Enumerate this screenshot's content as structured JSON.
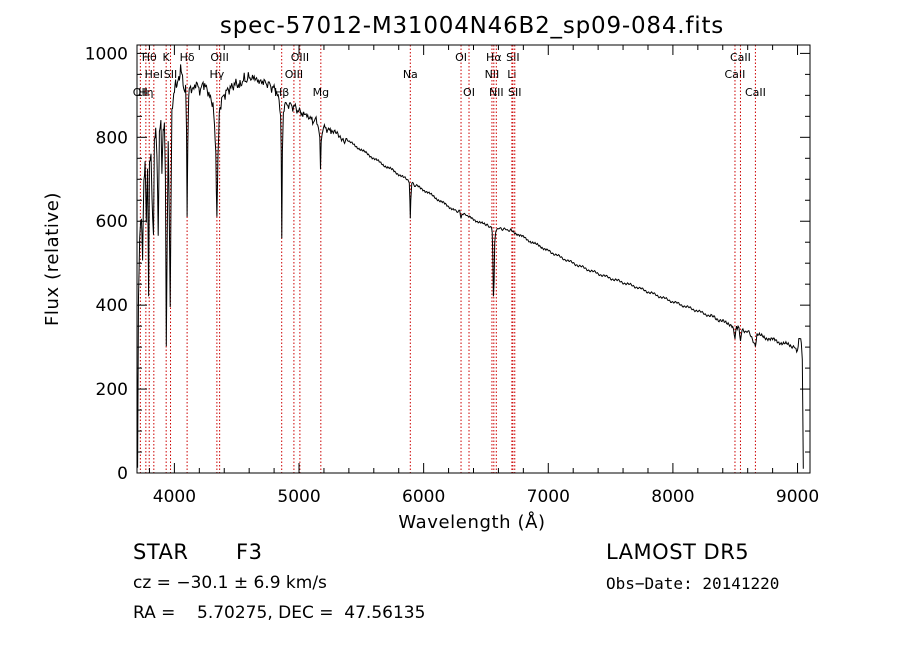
{
  "chart_data": {
    "type": "line",
    "title": "spec-57012-M31004N46B2_sp09-084.fits",
    "xlabel": "Wavelength (Å)",
    "ylabel": "Flux (relative)",
    "xlim": [
      3700,
      9100
    ],
    "ylim": [
      0,
      1020
    ],
    "xticks": [
      4000,
      5000,
      6000,
      7000,
      8000,
      9000
    ],
    "yticks": [
      0,
      200,
      400,
      600,
      800,
      1000
    ],
    "grid": false,
    "series": [
      {
        "points": [
          [
            3700,
            240
          ],
          [
            3705,
            10
          ],
          [
            3712,
            430
          ],
          [
            3722,
            560
          ],
          [
            3735,
            610
          ],
          [
            3745,
            520
          ],
          [
            3755,
            700
          ],
          [
            3765,
            740
          ],
          [
            3775,
            600
          ],
          [
            3785,
            720
          ],
          [
            3793,
            430
          ],
          [
            3800,
            740
          ],
          [
            3812,
            770
          ],
          [
            3820,
            660
          ],
          [
            3832,
            560
          ],
          [
            3840,
            800
          ],
          [
            3850,
            820
          ],
          [
            3860,
            760
          ],
          [
            3870,
            560
          ],
          [
            3880,
            800
          ],
          [
            3892,
            840
          ],
          [
            3900,
            720
          ],
          [
            3910,
            820
          ],
          [
            3920,
            840
          ],
          [
            3928,
            700
          ],
          [
            3935,
            300
          ],
          [
            3942,
            560
          ],
          [
            3950,
            780
          ],
          [
            3958,
            640
          ],
          [
            3966,
            400
          ],
          [
            3972,
            620
          ],
          [
            3980,
            860
          ],
          [
            3990,
            890
          ],
          [
            4000,
            920
          ],
          [
            4010,
            940
          ],
          [
            4020,
            920
          ],
          [
            4030,
            940
          ],
          [
            4040,
            930
          ],
          [
            4050,
            960
          ],
          [
            4060,
            950
          ],
          [
            4070,
            930
          ],
          [
            4080,
            910
          ],
          [
            4090,
            930
          ],
          [
            4097,
            820
          ],
          [
            4102,
            600
          ],
          [
            4108,
            780
          ],
          [
            4115,
            900
          ],
          [
            4130,
            920
          ],
          [
            4150,
            910
          ],
          [
            4170,
            930
          ],
          [
            4190,
            920
          ],
          [
            4210,
            910
          ],
          [
            4230,
            930
          ],
          [
            4250,
            920
          ],
          [
            4270,
            910
          ],
          [
            4290,
            890
          ],
          [
            4310,
            880
          ],
          [
            4322,
            840
          ],
          [
            4332,
            760
          ],
          [
            4341,
            610
          ],
          [
            4350,
            760
          ],
          [
            4360,
            860
          ],
          [
            4380,
            890
          ],
          [
            4400,
            900
          ],
          [
            4420,
            910
          ],
          [
            4440,
            915
          ],
          [
            4460,
            920
          ],
          [
            4480,
            925
          ],
          [
            4500,
            930
          ],
          [
            4520,
            920
          ],
          [
            4540,
            930
          ],
          [
            4560,
            940
          ],
          [
            4580,
            935
          ],
          [
            4600,
            945
          ],
          [
            4620,
            938
          ],
          [
            4640,
            945
          ],
          [
            4660,
            935
          ],
          [
            4680,
            935
          ],
          [
            4700,
            930
          ],
          [
            4720,
            935
          ],
          [
            4740,
            925
          ],
          [
            4760,
            930
          ],
          [
            4780,
            915
          ],
          [
            4800,
            920
          ],
          [
            4820,
            905
          ],
          [
            4840,
            890
          ],
          [
            4852,
            850
          ],
          [
            4857,
            760
          ],
          [
            4862,
            560
          ],
          [
            4867,
            760
          ],
          [
            4875,
            860
          ],
          [
            4890,
            880
          ],
          [
            4910,
            875
          ],
          [
            4930,
            880
          ],
          [
            4950,
            870
          ],
          [
            4970,
            875
          ],
          [
            4990,
            860
          ],
          [
            5010,
            865
          ],
          [
            5030,
            850
          ],
          [
            5050,
            860
          ],
          [
            5070,
            845
          ],
          [
            5090,
            850
          ],
          [
            5110,
            835
          ],
          [
            5130,
            845
          ],
          [
            5150,
            830
          ],
          [
            5167,
            800
          ],
          [
            5172,
            730
          ],
          [
            5178,
            790
          ],
          [
            5190,
            820
          ],
          [
            5210,
            825
          ],
          [
            5230,
            815
          ],
          [
            5250,
            820
          ],
          [
            5270,
            810
          ],
          [
            5300,
            810
          ],
          [
            5330,
            800
          ],
          [
            5360,
            795
          ],
          [
            5400,
            790
          ],
          [
            5450,
            780
          ],
          [
            5500,
            770
          ],
          [
            5550,
            760
          ],
          [
            5600,
            750
          ],
          [
            5650,
            740
          ],
          [
            5700,
            730
          ],
          [
            5750,
            722
          ],
          [
            5800,
            712
          ],
          [
            5850,
            702
          ],
          [
            5885,
            695
          ],
          [
            5890,
            650
          ],
          [
            5893,
            605
          ],
          [
            5897,
            650
          ],
          [
            5905,
            690
          ],
          [
            5950,
            683
          ],
          [
            6000,
            675
          ],
          [
            6050,
            665
          ],
          [
            6100,
            655
          ],
          [
            6150,
            645
          ],
          [
            6200,
            635
          ],
          [
            6250,
            627
          ],
          [
            6290,
            622
          ],
          [
            6300,
            608
          ],
          [
            6310,
            620
          ],
          [
            6350,
            612
          ],
          [
            6400,
            604
          ],
          [
            6450,
            598
          ],
          [
            6500,
            590
          ],
          [
            6540,
            587
          ],
          [
            6550,
            575
          ],
          [
            6555,
            520
          ],
          [
            6560,
            420
          ],
          [
            6565,
            460
          ],
          [
            6570,
            550
          ],
          [
            6580,
            580
          ],
          [
            6620,
            583
          ],
          [
            6660,
            580
          ],
          [
            6700,
            578
          ],
          [
            6750,
            570
          ],
          [
            6800,
            562
          ],
          [
            6850,
            553
          ],
          [
            6900,
            545
          ],
          [
            6950,
            538
          ],
          [
            7000,
            530
          ],
          [
            7100,
            514
          ],
          [
            7200,
            500
          ],
          [
            7300,
            487
          ],
          [
            7400,
            475
          ],
          [
            7500,
            464
          ],
          [
            7600,
            454
          ],
          [
            7700,
            444
          ],
          [
            7800,
            432
          ],
          [
            7900,
            420
          ],
          [
            8000,
            408
          ],
          [
            8100,
            397
          ],
          [
            8200,
            386
          ],
          [
            8300,
            374
          ],
          [
            8400,
            362
          ],
          [
            8480,
            352
          ],
          [
            8498,
            325
          ],
          [
            8510,
            350
          ],
          [
            8530,
            345
          ],
          [
            8542,
            310
          ],
          [
            8555,
            342
          ],
          [
            8580,
            338
          ],
          [
            8620,
            333
          ],
          [
            8662,
            305
          ],
          [
            8675,
            330
          ],
          [
            8700,
            327
          ],
          [
            8750,
            322
          ],
          [
            8800,
            318
          ],
          [
            8850,
            312
          ],
          [
            8900,
            308
          ],
          [
            8950,
            302
          ],
          [
            8980,
            300
          ],
          [
            9000,
            290
          ],
          [
            9010,
            315
          ],
          [
            9020,
            320
          ],
          [
            9030,
            310
          ],
          [
            9038,
            270
          ],
          [
            9042,
            150
          ],
          [
            9046,
            10
          ]
        ]
      }
    ],
    "lines": [
      {
        "label": "OII",
        "x": 3727,
        "row": 3
      },
      {
        "label": "Hη",
        "x": 3771,
        "row": 3
      },
      {
        "label": "Hθ",
        "x": 3798,
        "row": 1
      },
      {
        "label": "HeI",
        "x": 3835,
        "row": 2
      },
      {
        "label": "K",
        "x": 3934,
        "row": 1
      },
      {
        "label": "SII",
        "x": 3969,
        "row": 2
      },
      {
        "label": "Hδ",
        "x": 4102,
        "row": 1
      },
      {
        "label": "Hγ",
        "x": 4341,
        "row": 2
      },
      {
        "label": "OIII",
        "x": 4363,
        "row": 1
      },
      {
        "label": "Hβ",
        "x": 4861,
        "row": 3
      },
      {
        "label": "OIII",
        "x": 4959,
        "row": 2
      },
      {
        "label": "OIII",
        "x": 5007,
        "row": 1
      },
      {
        "label": "Mg",
        "x": 5175,
        "row": 3
      },
      {
        "label": "Na",
        "x": 5893,
        "row": 2
      },
      {
        "label": "OI",
        "x": 6300,
        "row": 1
      },
      {
        "label": "OI",
        "x": 6364,
        "row": 3
      },
      {
        "label": "NII",
        "x": 6548,
        "row": 2
      },
      {
        "label": "Hα",
        "x": 6563,
        "row": 1
      },
      {
        "label": "NII",
        "x": 6583,
        "row": 3
      },
      {
        "label": "Li",
        "x": 6708,
        "row": 2
      },
      {
        "label": "SII",
        "x": 6716,
        "row": 1
      },
      {
        "label": "SII",
        "x": 6731,
        "row": 3
      },
      {
        "label": "CaII",
        "x": 8498,
        "row": 2
      },
      {
        "label": "CaII",
        "x": 8542,
        "row": 1
      },
      {
        "label": "CaII",
        "x": 8662,
        "row": 3
      }
    ]
  },
  "info": {
    "object_class": "STAR",
    "subclass": "F3",
    "survey": "LAMOST DR5",
    "cz": "cz = −30.1 ± 6.9 km/s",
    "obs_date": "Obs−Date: 20141220",
    "coords": "RA =    5.70275, DEC =  47.56135"
  }
}
